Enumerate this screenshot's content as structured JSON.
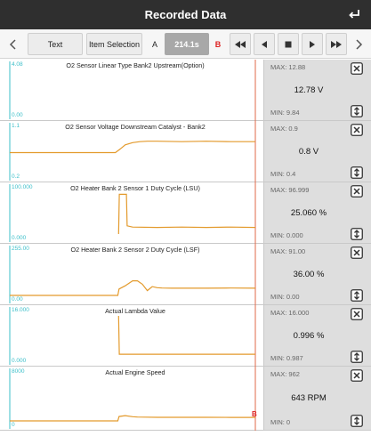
{
  "header": {
    "title": "Recorded Data",
    "back_icon": "return-arrow-icon"
  },
  "toolbar": {
    "text_label": "Text",
    "item_selection_label": "Item Selection",
    "marker_a": "A",
    "time": "214.1s",
    "marker_b": "B",
    "icons": [
      "chevron-left-icon",
      "fast-rewind-icon",
      "step-back-icon",
      "stop-icon",
      "play-icon",
      "fast-forward-icon",
      "chevron-right-icon"
    ]
  },
  "colors": {
    "trace": "#e39a2c",
    "axis": "#3bbfc9",
    "cursor": "#e06a4a",
    "panel_bg": "#dedede"
  },
  "cursor_marker": "B",
  "panels": [
    {
      "title": "O2 Sensor Linear Type Bank2 Upstream(Option)",
      "y_max": "4.08",
      "y_min": "0.00",
      "max": "MAX: 12.88",
      "min": "MIN: 9.84",
      "value": "12.78 V",
      "chart_data": {
        "type": "line",
        "xlim": [
          0,
          1
        ],
        "ylim": [
          0,
          4.08
        ],
        "x": [
          0,
          1
        ],
        "y": [
          null,
          null
        ]
      }
    },
    {
      "title": "O2 Sensor Voltage Downstream Catalyst - Bank2",
      "y_max": "1.1",
      "y_min": "0.2",
      "max": "MAX: 0.9",
      "min": "MIN: 0.4",
      "value": "0.8 V",
      "chart_data": {
        "type": "line",
        "xlim": [
          0,
          1
        ],
        "ylim": [
          0.2,
          1.1
        ],
        "x": [
          0,
          0.43,
          0.45,
          0.47,
          0.5,
          0.53,
          0.56,
          0.6,
          0.7,
          0.8,
          0.9,
          1.0
        ],
        "y": [
          0.64,
          0.64,
          0.72,
          0.81,
          0.86,
          0.88,
          0.89,
          0.89,
          0.88,
          0.89,
          0.88,
          0.88
        ]
      }
    },
    {
      "title": "O2 Heater Bank 2 Sensor 1 Duty Cycle (LSU)",
      "y_max": "100.000",
      "y_min": "0.000",
      "max": "MAX: 96.999",
      "min": "MIN: 0.000",
      "value": "25.060 %",
      "chart_data": {
        "type": "line",
        "xlim": [
          0,
          1
        ],
        "ylim": [
          0,
          100
        ],
        "x": [
          0.443,
          0.446,
          0.475,
          0.478,
          0.5,
          0.6,
          0.7,
          0.8,
          0.9,
          1.0
        ],
        "y": [
          0,
          97,
          97,
          20,
          17,
          16,
          17,
          16,
          17,
          16
        ]
      }
    },
    {
      "title": "O2 Heater Bank 2 Sensor 2 Duty Cycle (LSF)",
      "y_max": "255.00",
      "y_min": "0.00",
      "max": "MAX: 91.00",
      "min": "MIN: 0.00",
      "value": "36.00 %",
      "chart_data": {
        "type": "line",
        "xlim": [
          0,
          1
        ],
        "ylim": [
          0,
          255
        ],
        "x": [
          0,
          0.44,
          0.445,
          0.47,
          0.5,
          0.52,
          0.54,
          0.56,
          0.58,
          0.6,
          0.62,
          0.66,
          0.7,
          0.8,
          0.9,
          1.0
        ],
        "y": [
          0,
          0,
          40,
          60,
          91,
          91,
          70,
          30,
          55,
          48,
          46,
          45,
          45,
          45,
          46,
          45
        ]
      }
    },
    {
      "title": "Actual Lambda Value",
      "y_max": "16.000",
      "y_min": "0.000",
      "max": "MAX: 16.000",
      "min": "MIN: 0.987",
      "value": "0.996 %",
      "chart_data": {
        "type": "line",
        "xlim": [
          0,
          1
        ],
        "ylim": [
          0,
          16
        ],
        "x": [
          0.443,
          0.446,
          0.5,
          0.6,
          0.7,
          0.8,
          0.9,
          1.0
        ],
        "y": [
          16,
          1.0,
          1.0,
          1.0,
          1.0,
          1.0,
          1.0,
          1.0
        ]
      }
    },
    {
      "title": "Actual Engine Speed",
      "y_max": "8000",
      "y_min": "0",
      "max": "MAX: 962",
      "min": "MIN: 0",
      "value": "643 RPM",
      "chart_data": {
        "type": "line",
        "xlim": [
          0,
          1
        ],
        "ylim": [
          0,
          8000
        ],
        "x": [
          0,
          0.44,
          0.445,
          0.47,
          0.5,
          0.52,
          0.55,
          0.6,
          0.7,
          0.8,
          0.9,
          1.0
        ],
        "y": [
          0,
          0,
          800,
          962,
          760,
          700,
          680,
          660,
          650,
          645,
          643,
          643
        ]
      }
    }
  ]
}
